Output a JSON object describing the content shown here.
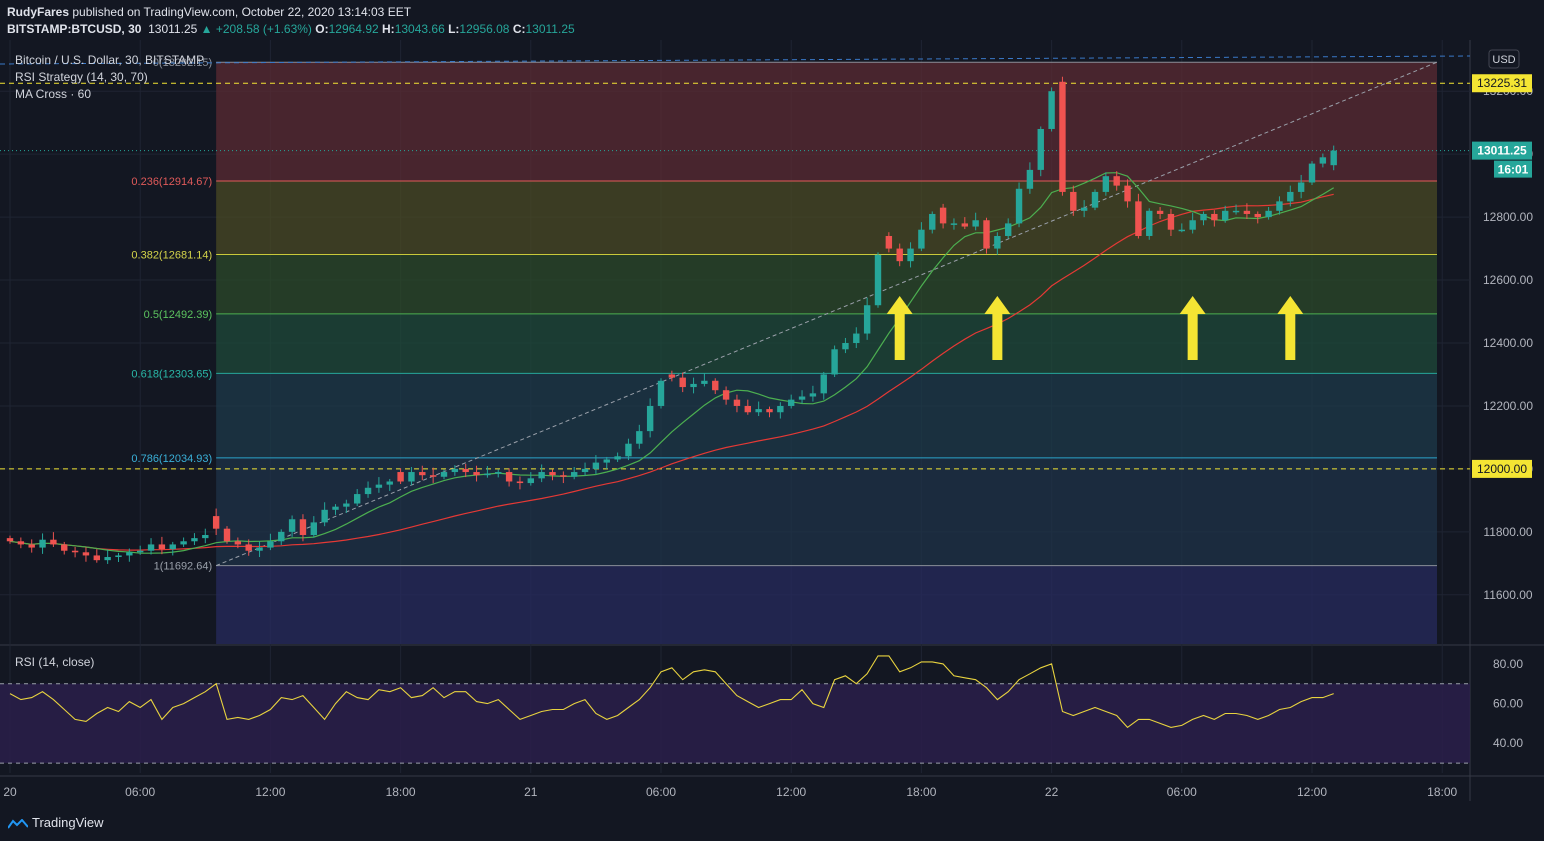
{
  "header": {
    "publisher": "RudyFares",
    "published_text": " published on TradingView.com, October 22, 2020 13:14:03 EET",
    "symbol": "BITSTAMP:BTCUSD, 30",
    "last": "13011.25",
    "change": "▲ +208.58 (+1.63%)",
    "o_label": "O:",
    "o_value": "12964.92",
    "h_label": "H:",
    "h_value": "13043.66",
    "l_label": "L:",
    "l_value": "12956.08",
    "c_label": "C:",
    "c_value": "13011.25"
  },
  "legend": {
    "title": "Bitcoin / U.S. Dollar, 30, BITSTAMP",
    "study1": "RSI Strategy (14, 30, 70)",
    "study2": "MA Cross · 60",
    "rsi_title": "RSI (14, close)"
  },
  "footer": {
    "brand": "TradingView"
  },
  "colors": {
    "background": "#131722",
    "up": "#26a69a",
    "down": "#ef5350",
    "ma_fast": "#4caf50",
    "ma_slow": "#e53935",
    "rsi_line": "#e8d33f",
    "arrows": "#f4e533",
    "hline": "#f4e533"
  },
  "chart_data": [
    {
      "type": "candlestick",
      "title": "Bitcoin / U.S. Dollar, 30, BITSTAMP",
      "currency": "USD",
      "ylim": [
        11450,
        13350
      ],
      "y_ticks": [
        "11600.00",
        "11800.00",
        "12000.00",
        "12200.00",
        "12400.00",
        "12600.00",
        "12800.00",
        "13000.00",
        "13200.00"
      ],
      "x_ticks": [
        {
          "label": "20",
          "bar": 0
        },
        {
          "label": "06:00",
          "bar": 12
        },
        {
          "label": "12:00",
          "bar": 24
        },
        {
          "label": "18:00",
          "bar": 36
        },
        {
          "label": "21",
          "bar": 48
        },
        {
          "label": "06:00",
          "bar": 60
        },
        {
          "label": "12:00",
          "bar": 72
        },
        {
          "label": "18:00",
          "bar": 84
        },
        {
          "label": "22",
          "bar": 96
        },
        {
          "label": "06:00",
          "bar": 108
        },
        {
          "label": "12:00",
          "bar": 120
        },
        {
          "label": "18:00",
          "bar": 132
        }
      ],
      "candles_close": [
        11770,
        11760,
        11750,
        11775,
        11760,
        11740,
        11735,
        11725,
        11710,
        11720,
        11725,
        11735,
        11740,
        11760,
        11745,
        11760,
        11770,
        11780,
        11790,
        11810,
        11770,
        11760,
        11740,
        11750,
        11770,
        11800,
        11840,
        11790,
        11830,
        11870,
        11880,
        11890,
        11920,
        11940,
        11950,
        11960,
        11960,
        11990,
        11980,
        11975,
        11990,
        12000,
        11990,
        11980,
        11985,
        11990,
        11960,
        11955,
        11970,
        11990,
        11980,
        11975,
        11990,
        12000,
        12020,
        12030,
        12040,
        12080,
        12120,
        12200,
        12280,
        12290,
        12260,
        12270,
        12280,
        12250,
        12220,
        12200,
        12180,
        12190,
        12180,
        12200,
        12220,
        12230,
        12240,
        12300,
        12380,
        12400,
        12430,
        12520,
        12680,
        12700,
        12660,
        12700,
        12760,
        12810,
        12780,
        12780,
        12770,
        12790,
        12700,
        12740,
        12780,
        12890,
        12950,
        13080,
        13200,
        12880,
        12820,
        12830,
        12880,
        12930,
        12900,
        12850,
        12740,
        12820,
        12810,
        12760,
        12760,
        12790,
        12810,
        12790,
        12820,
        12820,
        12810,
        12800,
        12820,
        12850,
        12880,
        12910,
        12970,
        12990,
        13011.25
      ],
      "candles_open": [
        11780,
        11770,
        11760,
        11750,
        11775,
        11760,
        11740,
        11735,
        11725,
        11710,
        11720,
        11725,
        11735,
        11740,
        11760,
        11745,
        11760,
        11770,
        11780,
        11850,
        11810,
        11770,
        11760,
        11740,
        11750,
        11770,
        11800,
        11840,
        11790,
        11830,
        11870,
        11880,
        11890,
        11920,
        11940,
        11950,
        11990,
        11960,
        11990,
        11980,
        11975,
        11990,
        12000,
        11990,
        11980,
        11985,
        11990,
        11960,
        11955,
        11970,
        11990,
        11980,
        11975,
        11990,
        12000,
        12020,
        12030,
        12040,
        12080,
        12120,
        12200,
        12300,
        12290,
        12260,
        12270,
        12280,
        12250,
        12220,
        12200,
        12180,
        12190,
        12180,
        12200,
        12220,
        12230,
        12240,
        12300,
        12380,
        12400,
        12430,
        12520,
        12740,
        12700,
        12660,
        12700,
        12760,
        12830,
        12780,
        12780,
        12770,
        12790,
        12700,
        12740,
        12780,
        12890,
        12950,
        13080,
        13230,
        12880,
        12820,
        12830,
        12880,
        12930,
        12900,
        12850,
        12740,
        12820,
        12810,
        12760,
        12760,
        12790,
        12810,
        12790,
        12820,
        12820,
        12810,
        12800,
        12820,
        12850,
        12880,
        12910,
        12970,
        12964.92
      ],
      "fib_levels": [
        {
          "label": "0(13292.15)",
          "value": 13292.15
        },
        {
          "label": "0.236(12914.67)",
          "value": 12914.67
        },
        {
          "label": "0.382(12681.14)",
          "value": 12681.14
        },
        {
          "label": "0.5(12492.39)",
          "value": 12492.39
        },
        {
          "label": "0.618(12303.65)",
          "value": 12303.65
        },
        {
          "label": "0.786(12034.93)",
          "value": 12034.93
        },
        {
          "label": "1(11692.64)",
          "value": 11692.64
        }
      ],
      "horizontal_lines": [
        {
          "label": "13225.31",
          "value": 13225.31
        },
        {
          "label": "12000.00",
          "value": 12000.0
        }
      ],
      "last_price": {
        "label": "13011.25",
        "countdown": "16:01",
        "value": 13011.25
      },
      "buy_arrows_at_bar": [
        82,
        91,
        109,
        118
      ]
    },
    {
      "type": "line",
      "title": "RSI (14, close)",
      "ylim": [
        25,
        88
      ],
      "y_ticks": [
        "40.00",
        "60.00",
        "80.00"
      ],
      "bands": [
        30,
        70
      ],
      "values": [
        65,
        62,
        63,
        66,
        62,
        57,
        52,
        51,
        55,
        58,
        56,
        61,
        58,
        62,
        52,
        58,
        60,
        63,
        66,
        70,
        52,
        53,
        52,
        54,
        57,
        63,
        62,
        64,
        58,
        52,
        60,
        66,
        63,
        62,
        67,
        66,
        68,
        63,
        64,
        68,
        63,
        66,
        66,
        61,
        60,
        62,
        57,
        52,
        54,
        56,
        57,
        57,
        60,
        62,
        55,
        52,
        54,
        58,
        62,
        68,
        76,
        78,
        72,
        76,
        77,
        76,
        70,
        64,
        61,
        58,
        60,
        62,
        62,
        67,
        60,
        58,
        72,
        74,
        70,
        75,
        84,
        84,
        76,
        78,
        81,
        81,
        80,
        74,
        73,
        72,
        68,
        62,
        66,
        72,
        75,
        78,
        80,
        56,
        54,
        56,
        58,
        56,
        54,
        48,
        52,
        52,
        50,
        48,
        49,
        52,
        54,
        52,
        55,
        55,
        54,
        52,
        54,
        57,
        58,
        61,
        63,
        63,
        65
      ]
    }
  ]
}
